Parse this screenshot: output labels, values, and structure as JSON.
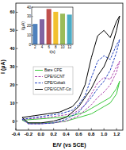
{
  "chart_data": [
    {
      "type": "line",
      "xlabel": "E/V (vs SCE)",
      "ylabel": "I (μA)",
      "xlim": [
        -0.4,
        1.3
      ],
      "ylim": [
        -5,
        65
      ],
      "xticks": [
        -0.4,
        -0.2,
        {
          "value": 0,
          "label": "0.0"
        },
        0.2,
        0.4,
        0.6,
        0.8,
        {
          "value": 1,
          "label": "1.0"
        },
        1.2
      ],
      "yticks": [
        0,
        10,
        20,
        30,
        40,
        50,
        60
      ],
      "legend": "lower right",
      "series": [
        {
          "name": "Bare CPE",
          "color": "#3cc83c",
          "line_style": "solid",
          "x": [
            -0.3,
            -0.1,
            0.1,
            0.3,
            0.5,
            0.6,
            0.7,
            0.8,
            0.9,
            1.0,
            1.1,
            1.2,
            1.25,
            1.2,
            1.1,
            1.0,
            0.9,
            0.8,
            0.6,
            0.4,
            0.2,
            0.0,
            -0.2,
            -0.3
          ],
          "values": [
            0.5,
            1,
            1.5,
            2,
            3,
            4,
            5,
            7,
            9,
            11,
            13,
            18,
            22,
            15,
            10,
            8,
            6,
            4,
            2,
            0,
            -1,
            -1,
            -1,
            0.5
          ]
        },
        {
          "name": "CPE/GCNT",
          "color": "#b04ab0",
          "line_style": "dashed",
          "x": [
            -0.3,
            -0.1,
            0.1,
            0.3,
            0.5,
            0.6,
            0.7,
            0.8,
            0.9,
            1.0,
            1.1,
            1.2,
            1.25,
            1.2,
            1.1,
            1.0,
            0.9,
            0.8,
            0.6,
            0.4,
            0.2,
            0.0,
            -0.2,
            -0.3
          ],
          "values": [
            1,
            1.5,
            2,
            3,
            4,
            6,
            9,
            15,
            21,
            24,
            23,
            30,
            33,
            27,
            20,
            16,
            13,
            9,
            3,
            0,
            -1,
            -1.5,
            -1.5,
            1
          ]
        },
        {
          "name": "CPE/Cobalt",
          "color": "#2040c0",
          "line_style": "dashed",
          "x": [
            -0.3,
            -0.1,
            0.1,
            0.3,
            0.5,
            0.6,
            0.7,
            0.8,
            0.9,
            1.0,
            1.1,
            1.2,
            1.25,
            1.2,
            1.1,
            1.0,
            0.9,
            0.8,
            0.6,
            0.4,
            0.2,
            0.0,
            -0.2,
            -0.3
          ],
          "values": [
            1,
            2,
            3,
            4,
            6,
            9,
            14,
            24,
            33,
            36,
            34,
            42,
            45,
            38,
            28,
            22,
            18,
            13,
            5,
            1,
            -1,
            -1.5,
            -1.5,
            1
          ]
        },
        {
          "name": "CPE/GCNT-Co",
          "color": "#000000",
          "line_style": "solid",
          "x": [
            -0.3,
            -0.1,
            0.1,
            0.3,
            0.5,
            0.6,
            0.7,
            0.8,
            0.9,
            1.0,
            1.1,
            1.2,
            1.25,
            1.2,
            1.1,
            1.0,
            0.9,
            0.8,
            0.6,
            0.4,
            0.2,
            0.0,
            -0.2,
            -0.3
          ],
          "values": [
            2,
            3,
            4,
            5,
            8,
            12,
            20,
            35,
            47,
            50,
            46,
            55,
            58,
            50,
            38,
            30,
            25,
            18,
            8,
            2,
            0,
            -1,
            -1,
            2
          ]
        }
      ]
    },
    {
      "type": "bar",
      "xlabel": "t(s)",
      "ylabel": "I(μA)",
      "categories": [
        "2",
        "4",
        "6",
        "8",
        "10",
        "12"
      ],
      "values": [
        22,
        27,
        38,
        35,
        33,
        32
      ],
      "colors": [
        "#4f81bd",
        "#8064a2",
        "#c0504d",
        "#f2c12e",
        "#9bbb59",
        "#4bacc6"
      ],
      "ylim": [
        0,
        40
      ],
      "yticks": [
        0,
        10,
        20,
        30,
        40
      ]
    }
  ]
}
